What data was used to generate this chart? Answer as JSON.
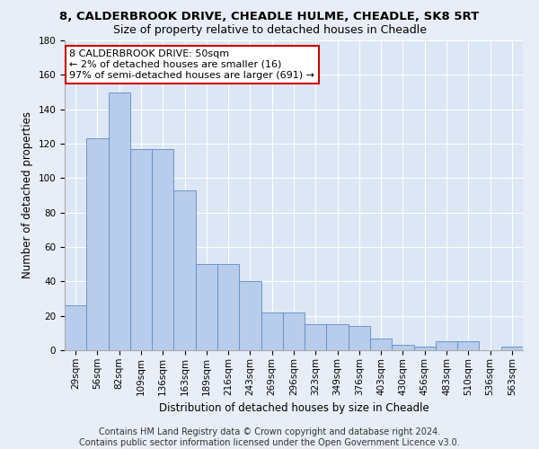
{
  "title1": "8, CALDERBROOK DRIVE, CHEADLE HULME, CHEADLE, SK8 5RT",
  "title2": "Size of property relative to detached houses in Cheadle",
  "xlabel": "Distribution of detached houses by size in Cheadle",
  "ylabel": "Number of detached properties",
  "categories": [
    "29sqm",
    "56sqm",
    "82sqm",
    "109sqm",
    "136sqm",
    "163sqm",
    "189sqm",
    "216sqm",
    "243sqm",
    "269sqm",
    "296sqm",
    "323sqm",
    "349sqm",
    "376sqm",
    "403sqm",
    "430sqm",
    "456sqm",
    "483sqm",
    "510sqm",
    "536sqm",
    "563sqm"
  ],
  "values": [
    26,
    123,
    150,
    117,
    117,
    93,
    50,
    50,
    40,
    22,
    22,
    15,
    15,
    14,
    7,
    3,
    2,
    5,
    5,
    0,
    2
  ],
  "bar_color": "#b8cceb",
  "bar_edge_color": "#5a8fc4",
  "annotation_box_text": "8 CALDERBROOK DRIVE: 50sqm\n← 2% of detached houses are smaller (16)\n97% of semi-detached houses are larger (691) →",
  "annotation_box_color": "#ffffff",
  "annotation_box_edge_color": "#cc0000",
  "ylim": [
    0,
    180
  ],
  "yticks": [
    0,
    20,
    40,
    60,
    80,
    100,
    120,
    140,
    160,
    180
  ],
  "footer_line1": "Contains HM Land Registry data © Crown copyright and database right 2024.",
  "footer_line2": "Contains public sector information licensed under the Open Government Licence v3.0.",
  "bg_color": "#e8eef7",
  "plot_bg_color": "#dce6f5",
  "grid_color": "#ffffff",
  "title1_fontsize": 9.5,
  "title2_fontsize": 9,
  "xlabel_fontsize": 8.5,
  "ylabel_fontsize": 8.5,
  "tick_fontsize": 7.5,
  "annotation_fontsize": 8,
  "footer_fontsize": 7
}
